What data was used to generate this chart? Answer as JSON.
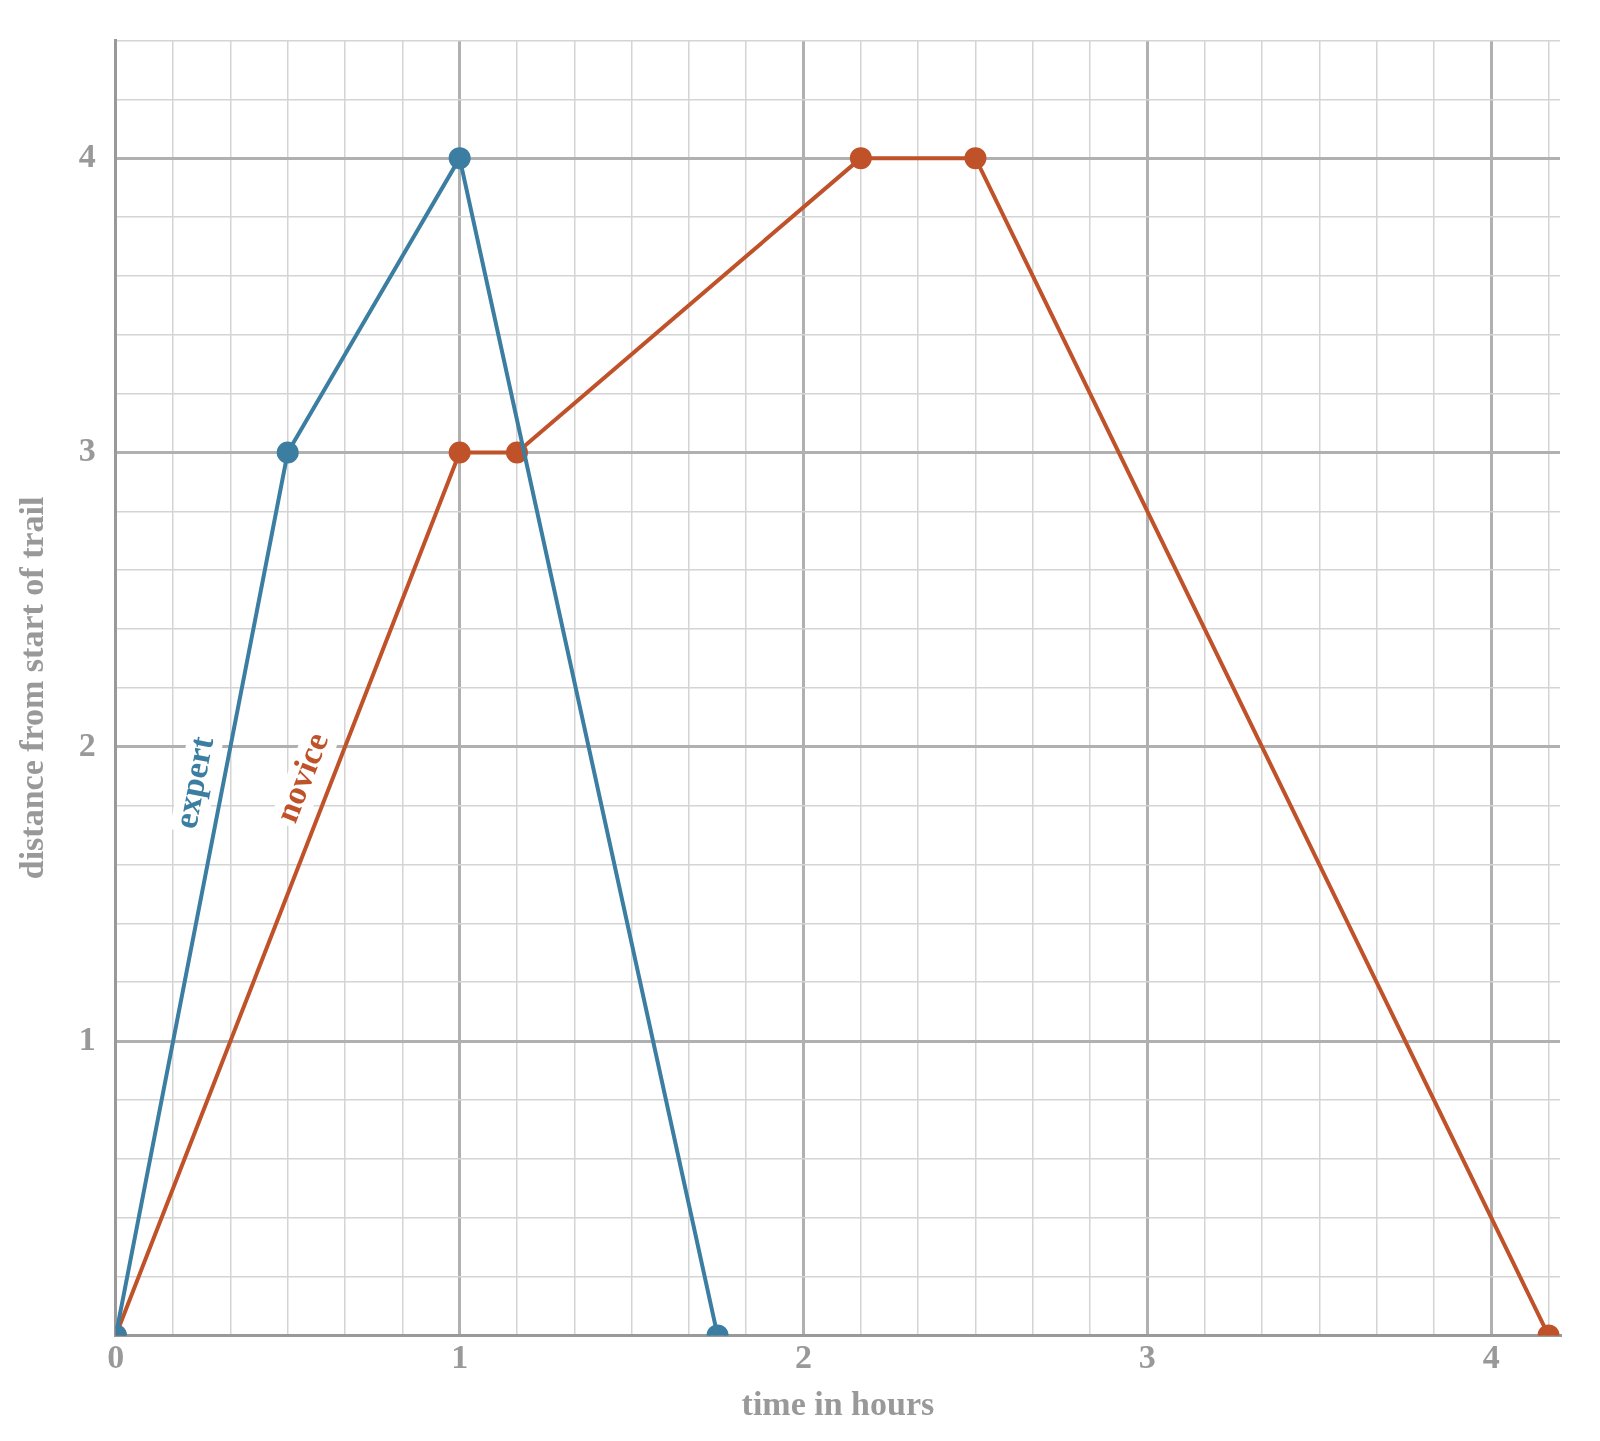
{
  "chart_data": {
    "type": "line",
    "xlabel": "time in hours",
    "ylabel": "distance from start of trail",
    "xlim": [
      0,
      4.2
    ],
    "ylim": [
      0,
      4.4
    ],
    "xticks": [
      0,
      {
        "value": 0.1667,
        "label": null
      },
      {
        "value": 0.3333,
        "label": null
      },
      {
        "value": 0.5,
        "label": null
      },
      {
        "value": 0.6667,
        "label": null
      },
      {
        "value": 0.8333,
        "label": null
      },
      1,
      {
        "value": 1.1667,
        "label": null
      },
      {
        "value": 1.3333,
        "label": null
      },
      {
        "value": 1.5,
        "label": null
      },
      {
        "value": 1.6667,
        "label": null
      },
      {
        "value": 1.8333,
        "label": null
      },
      2,
      {
        "value": 2.1667,
        "label": null
      },
      {
        "value": 2.3333,
        "label": null
      },
      {
        "value": 2.5,
        "label": null
      },
      {
        "value": 2.6667,
        "label": null
      },
      {
        "value": 2.8333,
        "label": null
      },
      3,
      {
        "value": 3.1667,
        "label": null
      },
      {
        "value": 3.3333,
        "label": null
      },
      {
        "value": 3.5,
        "label": null
      },
      {
        "value": 3.6667,
        "label": null
      },
      {
        "value": 3.8333,
        "label": null
      },
      4,
      {
        "value": 4.1667,
        "label": null
      }
    ],
    "yticks": [
      {
        "value": 0,
        "label": null
      },
      {
        "value": 0.2,
        "label": null
      },
      {
        "value": 0.4,
        "label": null
      },
      {
        "value": 0.6,
        "label": null
      },
      {
        "value": 0.8,
        "label": null
      },
      1,
      {
        "value": 1.2,
        "label": null
      },
      {
        "value": 1.4,
        "label": null
      },
      {
        "value": 1.6,
        "label": null
      },
      {
        "value": 1.8,
        "label": null
      },
      2,
      {
        "value": 2.2,
        "label": null
      },
      {
        "value": 2.4,
        "label": null
      },
      {
        "value": 2.6,
        "label": null
      },
      {
        "value": 2.8,
        "label": null
      },
      3,
      {
        "value": 3.2,
        "label": null
      },
      {
        "value": 3.4,
        "label": null
      },
      {
        "value": 3.6,
        "label": null
      },
      {
        "value": 3.8,
        "label": null
      },
      4,
      {
        "value": 4.2,
        "label": null
      },
      {
        "value": 4.4,
        "label": null
      }
    ],
    "grid": true,
    "legend": false,
    "marker": "circle",
    "line_style": "solid",
    "series": [
      {
        "name": "expert",
        "color": "#3b7ea1",
        "x": [
          0,
          0.5,
          1,
          1.75
        ],
        "values": [
          0,
          3,
          4,
          0
        ]
      },
      {
        "name": "novice",
        "color": "#c0522a",
        "x": [
          0,
          1,
          1.1667,
          2.1667,
          2.5,
          4.1667
        ],
        "values": [
          0,
          3,
          3,
          4,
          4,
          0
        ]
      }
    ]
  }
}
